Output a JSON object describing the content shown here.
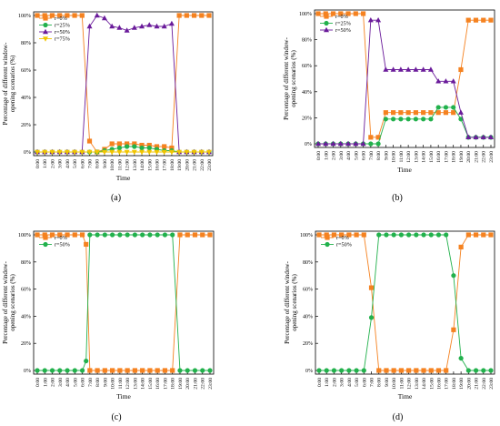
{
  "chart_data": [
    {
      "type": "line",
      "panel_label": "(a)",
      "xlabel": "Time",
      "ylabel": "Percentage of different window-opening scenarios (%)",
      "categories": [
        "0:00",
        "1:00",
        "2:00",
        "3:00",
        "4:00",
        "5:00",
        "6:00",
        "7:00",
        "8:00",
        "9:00",
        "10:00",
        "11:00",
        "12:00",
        "13:00",
        "14:00",
        "15:00",
        "16:00",
        "17:00",
        "18:00",
        "19:00",
        "20:00",
        "21:00",
        "22:00",
        "23:00"
      ],
      "ylim": [
        0,
        100
      ],
      "yticks": [
        "0%",
        "20%",
        "40%",
        "60%",
        "80%",
        "100%"
      ],
      "legend_position": "top-left",
      "series": [
        {
          "name": "r=0%",
          "color": "#f58220",
          "marker": "square",
          "x": [
            0,
            1,
            2,
            3,
            4,
            5,
            6,
            7,
            8,
            9,
            10,
            11,
            12,
            13,
            14,
            15,
            16,
            17,
            18,
            19,
            20,
            21,
            22,
            23
          ],
          "values": [
            100,
            100,
            100,
            100,
            100,
            100,
            100,
            8,
            0,
            2,
            6,
            6,
            6,
            6,
            5,
            5,
            4,
            4,
            3,
            100,
            100,
            100,
            100,
            100
          ]
        },
        {
          "name": "r=25%",
          "color": "#22b14c",
          "marker": "circle",
          "x": [
            0,
            1,
            2,
            3,
            4,
            5,
            6,
            7,
            8,
            9,
            10,
            11,
            12,
            13,
            14,
            15,
            16,
            17,
            18,
            19,
            20,
            21,
            22,
            23
          ],
          "values": [
            0,
            0,
            0,
            0,
            0,
            0,
            0,
            0,
            0,
            1,
            2,
            3,
            4,
            4,
            3,
            3,
            2,
            1,
            1,
            0,
            0,
            0,
            0,
            0
          ]
        },
        {
          "name": "r=50%",
          "color": "#6a1b9a",
          "marker": "triangle",
          "x": [
            0,
            1,
            2,
            3,
            4,
            5,
            6,
            7,
            8,
            9,
            10,
            11,
            12,
            13,
            14,
            15,
            16,
            17,
            18,
            19,
            20,
            21,
            22,
            23
          ],
          "values": [
            0,
            0,
            0,
            0,
            0,
            0,
            0,
            92,
            100,
            98,
            92,
            91,
            89,
            91,
            92,
            93,
            92,
            92,
            94,
            0,
            0,
            0,
            0,
            0
          ]
        },
        {
          "name": "r=75%",
          "color": "#f2c500",
          "marker": "triangle-down",
          "x": [
            0,
            1,
            2,
            3,
            4,
            5,
            6,
            7,
            8,
            9,
            10,
            11,
            12,
            13,
            14,
            15,
            16,
            17,
            18,
            19,
            20,
            21,
            22,
            23
          ],
          "values": [
            0,
            0,
            0,
            0,
            0,
            0,
            0,
            0,
            0,
            0,
            0,
            0,
            0,
            0,
            0,
            0,
            0,
            0,
            0,
            0,
            0,
            0,
            0,
            0
          ]
        }
      ]
    },
    {
      "type": "line",
      "panel_label": "(b)",
      "xlabel": "Time",
      "ylabel": "Percentage of different window-opening scenarios (%)",
      "categories": [
        "0:00",
        "1:00",
        "2:00",
        "3:00",
        "4:00",
        "5:00",
        "6:00",
        "7:00",
        "8:00",
        "9:00",
        "10:00",
        "11:00",
        "12:00",
        "13:00",
        "14:00",
        "15:00",
        "16:00",
        "17:00",
        "18:00",
        "19:00",
        "20:00",
        "21:00",
        "22:00",
        "23:00"
      ],
      "ylim": [
        0,
        100
      ],
      "yticks": [
        "0%",
        "20%",
        "40%",
        "60%",
        "80%",
        "100%"
      ],
      "legend_position": "top-left",
      "series": [
        {
          "name": "r=0%",
          "color": "#f58220",
          "marker": "square",
          "x": [
            0,
            1,
            2,
            3,
            4,
            5,
            6,
            7,
            8,
            9,
            10,
            11,
            12,
            13,
            14,
            15,
            16,
            17,
            18,
            19,
            20,
            21,
            22,
            23
          ],
          "values": [
            100,
            100,
            100,
            100,
            100,
            100,
            100,
            5,
            5,
            24,
            24,
            24,
            24,
            24,
            24,
            24,
            24,
            24,
            24,
            57,
            95,
            95,
            95,
            95
          ]
        },
        {
          "name": "r=25%",
          "color": "#22b14c",
          "marker": "circle",
          "x": [
            0,
            1,
            2,
            3,
            4,
            5,
            6,
            7,
            8,
            9,
            10,
            11,
            12,
            13,
            14,
            15,
            16,
            17,
            18,
            19,
            20,
            21,
            22,
            23
          ],
          "values": [
            0,
            0,
            0,
            0,
            0,
            0,
            0,
            0,
            0,
            19,
            19,
            19,
            19,
            19,
            19,
            19,
            28,
            28,
            28,
            19,
            5,
            5,
            5,
            5
          ]
        },
        {
          "name": "r=50%",
          "color": "#6a1b9a",
          "marker": "triangle",
          "x": [
            0,
            1,
            2,
            3,
            4,
            5,
            6,
            7,
            8,
            9,
            10,
            11,
            12,
            13,
            14,
            15,
            16,
            17,
            18,
            19,
            20,
            21,
            22,
            23
          ],
          "values": [
            0,
            0,
            0,
            0,
            0,
            0,
            0,
            95,
            95,
            57,
            57,
            57,
            57,
            57,
            57,
            57,
            48,
            48,
            48,
            24,
            5,
            5,
            5,
            5
          ]
        }
      ]
    },
    {
      "type": "line",
      "panel_label": "(c)",
      "xlabel": "Time",
      "ylabel": "Percentage of different window-opening scenarios (%)",
      "categories": [
        "0:00",
        "1:00",
        "2:00",
        "3:00",
        "4:00",
        "5:00",
        "6:00",
        "7:00",
        "8:00",
        "9:00",
        "10:00",
        "11:00",
        "12:00",
        "13:00",
        "14:00",
        "15:00",
        "16:00",
        "17:00",
        "18:00",
        "19:00",
        "20:00",
        "21:00",
        "22:00",
        "23:00"
      ],
      "ylim": [
        0,
        100
      ],
      "yticks": [
        "0%",
        "20%",
        "40%",
        "60%",
        "80%",
        "100%"
      ],
      "legend_position": "top-left",
      "series": [
        {
          "name": "r=0%",
          "color": "#f58220",
          "marker": "square",
          "x": [
            0,
            1,
            2,
            3,
            4,
            5,
            6,
            6.5,
            7,
            8,
            9,
            10,
            11,
            12,
            13,
            14,
            15,
            16,
            17,
            18,
            19,
            20,
            21,
            22,
            23
          ],
          "values": [
            100,
            100,
            100,
            100,
            100,
            100,
            100,
            93,
            0,
            0,
            0,
            0,
            0,
            0,
            0,
            0,
            0,
            0,
            0,
            0,
            100,
            100,
            100,
            100,
            100
          ]
        },
        {
          "name": "r=50%",
          "color": "#22b14c",
          "marker": "circle",
          "x": [
            0,
            1,
            2,
            3,
            4,
            5,
            6,
            6.5,
            7,
            8,
            9,
            10,
            11,
            12,
            13,
            14,
            15,
            16,
            17,
            18,
            19,
            20,
            21,
            22,
            23
          ],
          "values": [
            0,
            0,
            0,
            0,
            0,
            0,
            0,
            7,
            100,
            100,
            100,
            100,
            100,
            100,
            100,
            100,
            100,
            100,
            100,
            100,
            0,
            0,
            0,
            0,
            0
          ]
        }
      ]
    },
    {
      "type": "line",
      "panel_label": "(d)",
      "xlabel": "Time",
      "ylabel": "Percentage of different window-opening scenarios (%)",
      "categories": [
        "0:00",
        "1:00",
        "2:00",
        "3:00",
        "4:00",
        "5:00",
        "6:00",
        "7:00",
        "8:00",
        "9:00",
        "10:00",
        "11:00",
        "12:00",
        "13:00",
        "14:00",
        "15:00",
        "16:00",
        "17:00",
        "18:00",
        "19:00",
        "20:00",
        "21:00",
        "22:00",
        "23:00"
      ],
      "ylim": [
        0,
        100
      ],
      "yticks": [
        "0%",
        "20%",
        "40%",
        "60%",
        "80%",
        "100%"
      ],
      "legend_position": "top-left",
      "series": [
        {
          "name": "r=0%",
          "color": "#f58220",
          "marker": "square",
          "x": [
            0,
            1,
            2,
            3,
            4,
            5,
            6,
            7,
            8,
            9,
            10,
            11,
            12,
            13,
            14,
            15,
            16,
            17,
            18,
            19,
            20,
            21,
            22,
            23
          ],
          "values": [
            100,
            100,
            100,
            100,
            100,
            100,
            100,
            61,
            0,
            0,
            0,
            0,
            0,
            0,
            0,
            0,
            0,
            0,
            30,
            91,
            100,
            100,
            100,
            100
          ]
        },
        {
          "name": "r=50%",
          "color": "#22b14c",
          "marker": "circle",
          "x": [
            0,
            1,
            2,
            3,
            4,
            5,
            6,
            7,
            8,
            9,
            10,
            11,
            12,
            13,
            14,
            15,
            16,
            17,
            18,
            19,
            20,
            21,
            22,
            23
          ],
          "values": [
            0,
            0,
            0,
            0,
            0,
            0,
            0,
            39,
            100,
            100,
            100,
            100,
            100,
            100,
            100,
            100,
            100,
            100,
            70,
            9,
            0,
            0,
            0,
            0
          ]
        }
      ]
    }
  ]
}
